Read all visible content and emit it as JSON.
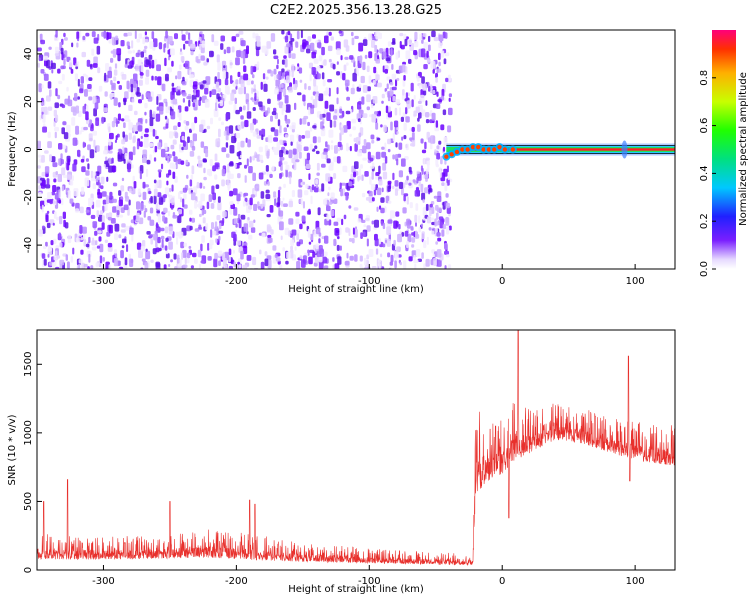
{
  "title": "C2E2.2025.356.13.28.G25",
  "chart_data": [
    {
      "type": "heatmap",
      "xlabel": "Height of straight line (km)",
      "ylabel": "Frequency (Hz)",
      "xlim": [
        -350,
        130
      ],
      "ylim": [
        -50,
        50
      ],
      "xticks": [
        -300,
        -200,
        -100,
        0,
        100
      ],
      "yticks": [
        -40,
        -20,
        0,
        20,
        40
      ],
      "noise_region_x": [
        -350,
        -40
      ],
      "signal": {
        "frequency_hz": 0,
        "x_start": -42,
        "x_end": 130,
        "onset_wiggle": [
          [
            -42,
            -3
          ],
          [
            -38,
            -2
          ],
          [
            -34,
            -1
          ],
          [
            -30,
            0
          ],
          [
            -26,
            0
          ],
          [
            -22,
            1
          ],
          [
            -18,
            1
          ],
          [
            -14,
            0
          ],
          [
            -10,
            0
          ],
          [
            -6,
            0
          ],
          [
            -2,
            1
          ],
          [
            2,
            0
          ],
          [
            8,
            0
          ]
        ],
        "spur_x": 92
      },
      "colorbar": {
        "label": "Normalized spectral amplitude",
        "ticks": [
          0.0,
          0.2,
          0.4,
          0.6,
          0.8
        ],
        "range": [
          0,
          1
        ]
      },
      "grid": false
    },
    {
      "type": "line",
      "xlabel": "Height of straight line (km)",
      "ylabel": "SNR (10 * v/v)",
      "xlim": [
        -350,
        130
      ],
      "ylim": [
        0,
        1750
      ],
      "xticks": [
        -300,
        -200,
        -100,
        0,
        100
      ],
      "yticks": [
        0,
        500,
        1000,
        1500
      ],
      "series_color": "#e8302c",
      "envelope": {
        "x": [
          -350,
          -300,
          -250,
          -220,
          -180,
          -150,
          -100,
          -50,
          -22,
          -20,
          -10,
          0,
          10,
          20,
          40,
          60,
          80,
          100,
          130
        ],
        "baseline": [
          80,
          75,
          85,
          90,
          70,
          60,
          50,
          40,
          35,
          550,
          650,
          700,
          800,
          850,
          950,
          920,
          860,
          800,
          760
        ],
        "upper": [
          270,
          240,
          260,
          300,
          250,
          200,
          160,
          130,
          120,
          1150,
          1200,
          1100,
          1250,
          1200,
          1220,
          1180,
          1120,
          1080,
          1060
        ],
        "spikes": [
          [
            -345,
            500
          ],
          [
            -327,
            660
          ],
          [
            -250,
            500
          ],
          [
            -190,
            510
          ],
          [
            -186,
            480
          ],
          [
            -5,
            1050
          ],
          [
            12,
            1750
          ],
          [
            5,
            380
          ],
          [
            70,
            1120
          ],
          [
            95,
            1560
          ],
          [
            96,
            650
          ]
        ]
      },
      "grid": false
    }
  ]
}
